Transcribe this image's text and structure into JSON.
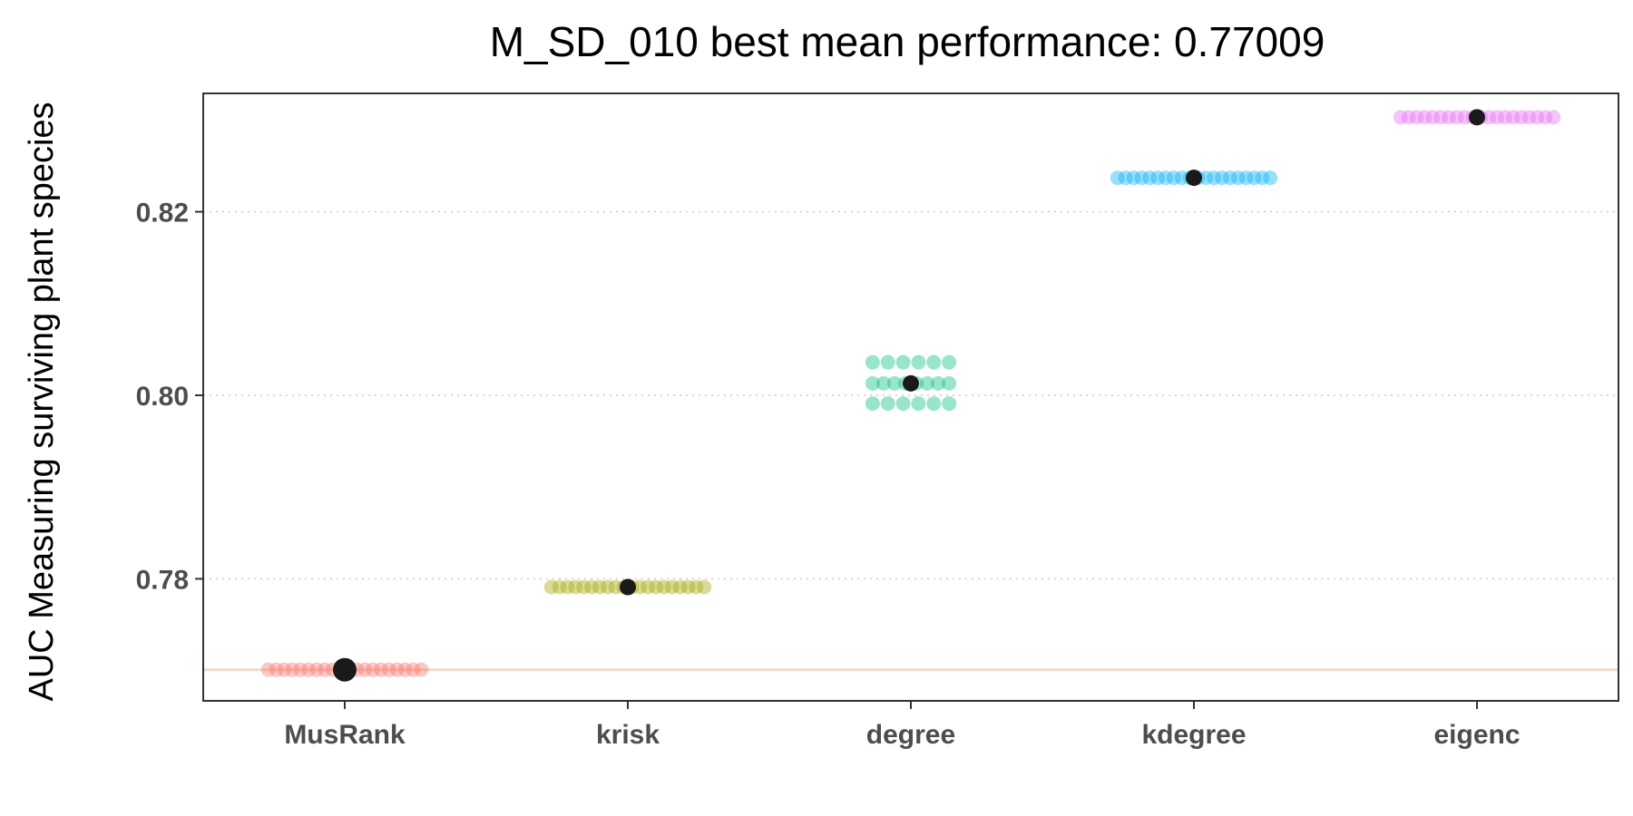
{
  "chart_data": {
    "type": "scatter",
    "title": "M_SD_010 best mean performance: 0.77009",
    "xlabel": "",
    "ylabel": "AUC Measuring surviving plant species",
    "categories": [
      "MusRank",
      "krisk",
      "degree",
      "kdegree",
      "eigenc"
    ],
    "ylim": [
      0.7667,
      0.8329
    ],
    "yticks": [
      0.78,
      0.8,
      0.82
    ],
    "ytick_labels": [
      "0.78",
      "0.80",
      "0.82"
    ],
    "grid": "horizontal dotted",
    "reference_line": 0.77009,
    "colors": {
      "MusRank": "#f8766d",
      "krisk": "#a3a500",
      "degree": "#00bf7d",
      "kdegree": "#00b0f6",
      "eigenc": "#e76bf3",
      "mean_point": "#1a1a1a",
      "reference_line": "#f4d9c6"
    },
    "series": [
      {
        "category": "MusRank",
        "mean": 0.77009,
        "values": [
          0.7701,
          0.7701,
          0.7701,
          0.7701,
          0.7701,
          0.7701,
          0.7701,
          0.7701,
          0.7701,
          0.7701,
          0.7701,
          0.7701,
          0.7701,
          0.7701,
          0.7701,
          0.7701,
          0.7701,
          0.7701,
          0.7701,
          0.7701
        ]
      },
      {
        "category": "krisk",
        "mean": 0.7791,
        "values": [
          0.7791,
          0.7791,
          0.7791,
          0.7791,
          0.7791,
          0.7791,
          0.7791,
          0.7791,
          0.7791,
          0.7791,
          0.7791,
          0.7791,
          0.7791,
          0.7791,
          0.7791,
          0.7791,
          0.7791,
          0.7791,
          0.7791,
          0.7791
        ]
      },
      {
        "category": "degree",
        "mean": 0.8013,
        "values": [
          0.8036,
          0.8036,
          0.8036,
          0.8036,
          0.8036,
          0.8036,
          0.8013,
          0.8013,
          0.8013,
          0.8013,
          0.8013,
          0.8013,
          0.8013,
          0.8013,
          0.7991,
          0.7991,
          0.7991,
          0.7991,
          0.7991,
          0.7991
        ]
      },
      {
        "category": "kdegree",
        "mean": 0.8237,
        "values": [
          0.8237,
          0.8237,
          0.8237,
          0.8237,
          0.8237,
          0.8237,
          0.8237,
          0.8237,
          0.8237,
          0.8237,
          0.8237,
          0.8237,
          0.8237,
          0.8237,
          0.8237,
          0.8237,
          0.8237,
          0.8237,
          0.8237,
          0.8237
        ]
      },
      {
        "category": "eigenc",
        "mean": 0.8303,
        "values": [
          0.8303,
          0.8303,
          0.8303,
          0.8303,
          0.8303,
          0.8303,
          0.8303,
          0.8303,
          0.8303,
          0.8303,
          0.8303,
          0.8303,
          0.8303,
          0.8303,
          0.8303,
          0.8303,
          0.8303,
          0.8303,
          0.8303,
          0.8303
        ]
      }
    ]
  }
}
